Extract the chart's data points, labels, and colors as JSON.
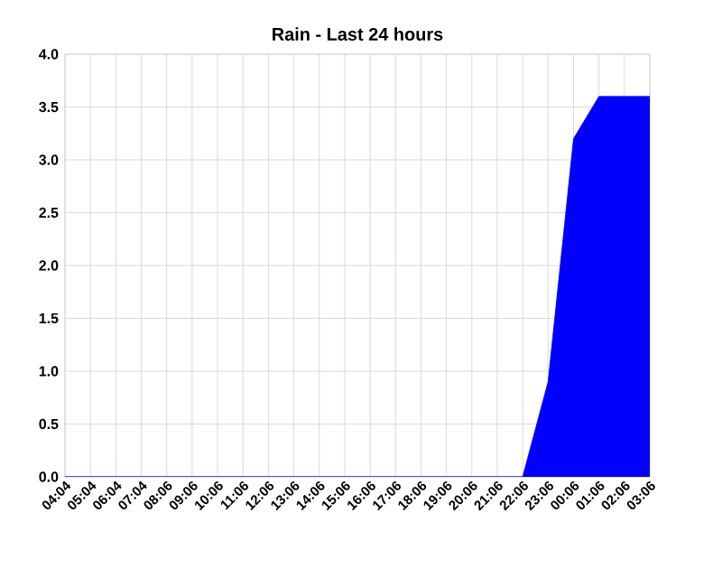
{
  "chart_data": {
    "type": "area",
    "title": "Rain - Last 24 hours",
    "categories": [
      "04:04",
      "05:04",
      "06:04",
      "07:04",
      "08:06",
      "09:06",
      "10:06",
      "11:06",
      "12:06",
      "13:06",
      "14:06",
      "15:06",
      "16:06",
      "17:06",
      "18:06",
      "19:06",
      "20:06",
      "21:06",
      "22:06",
      "23:06",
      "00:06",
      "01:06",
      "02:06",
      "03:06"
    ],
    "values": [
      0,
      0,
      0,
      0,
      0,
      0,
      0,
      0,
      0,
      0,
      0,
      0,
      0,
      0,
      0,
      0,
      0,
      0,
      0,
      0.9,
      3.2,
      3.6,
      3.6,
      3.6
    ],
    "color": "#0000ff",
    "ylim": [
      0,
      4
    ],
    "yticks": [
      {
        "value": 0,
        "label": "0.0"
      },
      {
        "value": 0.5,
        "label": "0.5"
      },
      {
        "value": 1,
        "label": "1.0"
      },
      {
        "value": 1.5,
        "label": "1.5"
      },
      {
        "value": 2,
        "label": "2.0"
      },
      {
        "value": 2.5,
        "label": "2.5"
      },
      {
        "value": 3,
        "label": "3.0"
      },
      {
        "value": 3.5,
        "label": "3.5"
      },
      {
        "value": 4,
        "label": "4.0"
      }
    ],
    "grid": true
  }
}
